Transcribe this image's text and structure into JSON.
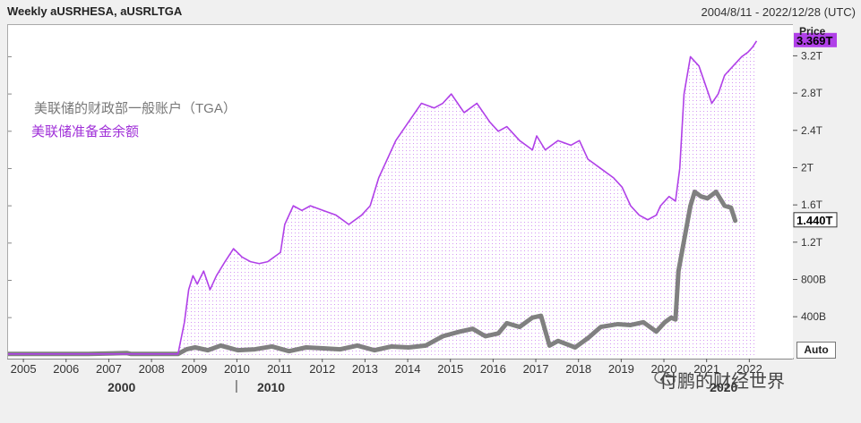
{
  "header": {
    "title": "Weekly aUSRHESA, aUSRLTGA",
    "date_range": "2004/8/11 - 2022/12/28 (UTC)"
  },
  "price_axis_label": "Price",
  "auto_button": "Auto",
  "watermark": "付鹏的财经世界",
  "colors": {
    "purple": "#b040e8",
    "gray": "#808080",
    "purple_badge": "#b040e8",
    "gray_badge": "#7a7a7a"
  },
  "chart_data": {
    "type": "line",
    "title": "",
    "legend": [
      {
        "label": "美联储的财政部一般账户（TGA）",
        "color": "#777777"
      },
      {
        "label": "美联储准备金余额",
        "color": "#a030d8"
      }
    ],
    "y_ticks": [
      "3.2T",
      "2.8T",
      "2.4T",
      "2T",
      "1.6T",
      "1.2T",
      "800B",
      "400B"
    ],
    "y_tick_values": [
      3200,
      2800,
      2400,
      2000,
      1600,
      1200,
      800,
      400
    ],
    "ylim": [
      -40,
      3540
    ],
    "xlim": [
      2004.62,
      2023.0
    ],
    "x_ticks": [
      "2005",
      "2006",
      "2007",
      "2008",
      "2009",
      "2010",
      "2011",
      "2012",
      "2013",
      "2014",
      "2015",
      "2016",
      "2017",
      "2018",
      "2019",
      "2020",
      "2021",
      "2022"
    ],
    "x_tick_values": [
      2005,
      2006,
      2007,
      2008,
      2009,
      2010,
      2011,
      2012,
      2013,
      2014,
      2015,
      2016,
      2017,
      2018,
      2019,
      2020,
      2021,
      2022
    ],
    "decade_labels": [
      {
        "label": "2000",
        "x": 2007.3
      },
      {
        "label": "2010",
        "x": 2010.8
      },
      {
        "label": "2020",
        "x": 2021.4
      }
    ],
    "badges": [
      {
        "label": "3.369T",
        "value": 3369,
        "series": "准备金"
      },
      {
        "label": "1.440T",
        "value": 1440,
        "series": "TGA"
      }
    ],
    "series": [
      {
        "name": "美联储准备金余额",
        "color": "#b040e8",
        "x": [
          2004.62,
          2005.5,
          2006.5,
          2007.5,
          2008.6,
          2008.75,
          2008.85,
          2008.95,
          2009.05,
          2009.2,
          2009.35,
          2009.5,
          2009.7,
          2009.9,
          2010.1,
          2010.3,
          2010.5,
          2010.7,
          2011.0,
          2011.1,
          2011.3,
          2011.5,
          2011.7,
          2012.0,
          2012.3,
          2012.6,
          2012.9,
          2013.1,
          2013.3,
          2013.5,
          2013.7,
          2014.0,
          2014.3,
          2014.6,
          2014.8,
          2015.0,
          2015.3,
          2015.6,
          2015.9,
          2016.1,
          2016.3,
          2016.6,
          2016.9,
          2017.0,
          2017.2,
          2017.5,
          2017.8,
          2018.0,
          2018.2,
          2018.5,
          2018.8,
          2019.0,
          2019.2,
          2019.4,
          2019.6,
          2019.8,
          2019.9,
          2020.1,
          2020.25,
          2020.35,
          2020.45,
          2020.6,
          2020.8,
          2020.95,
          2021.1,
          2021.25,
          2021.4,
          2021.6,
          2021.8,
          2021.95,
          2022.05,
          2022.15
        ],
        "values": [
          10,
          10,
          10,
          10,
          10,
          350,
          700,
          850,
          760,
          900,
          700,
          850,
          1000,
          1140,
          1050,
          1000,
          980,
          1000,
          1100,
          1400,
          1600,
          1550,
          1600,
          1550,
          1500,
          1400,
          1500,
          1600,
          1900,
          2100,
          2300,
          2500,
          2700,
          2650,
          2700,
          2800,
          2600,
          2700,
          2500,
          2400,
          2450,
          2300,
          2200,
          2350,
          2200,
          2300,
          2250,
          2300,
          2100,
          2000,
          1900,
          1800,
          1600,
          1500,
          1450,
          1500,
          1600,
          1700,
          1650,
          2000,
          2800,
          3200,
          3100,
          2900,
          2700,
          2800,
          3000,
          3100,
          3200,
          3250,
          3300,
          3369
        ]
      },
      {
        "name": "美联储的财政部一般账户（TGA）",
        "color": "#808080",
        "x": [
          2004.62,
          2005.5,
          2006.5,
          2007.4,
          2007.5,
          2008.6,
          2008.8,
          2009.0,
          2009.3,
          2009.6,
          2010.0,
          2010.4,
          2010.8,
          2011.2,
          2011.6,
          2012.0,
          2012.4,
          2012.8,
          2013.2,
          2013.6,
          2014.0,
          2014.4,
          2014.8,
          2015.2,
          2015.5,
          2015.8,
          2016.1,
          2016.3,
          2016.6,
          2016.9,
          2017.1,
          2017.3,
          2017.5,
          2017.9,
          2018.2,
          2018.5,
          2018.9,
          2019.2,
          2019.5,
          2019.8,
          2020.0,
          2020.15,
          2020.25,
          2020.32,
          2020.4,
          2020.5,
          2020.6,
          2020.7,
          2020.85,
          2021.0,
          2021.2,
          2021.4,
          2021.55,
          2021.65
        ],
        "values": [
          10,
          10,
          10,
          20,
          10,
          10,
          60,
          80,
          50,
          100,
          50,
          60,
          90,
          40,
          80,
          70,
          60,
          100,
          50,
          90,
          80,
          100,
          200,
          250,
          280,
          200,
          230,
          340,
          300,
          400,
          420,
          100,
          150,
          80,
          180,
          300,
          330,
          320,
          350,
          250,
          350,
          400,
          380,
          900,
          1100,
          1350,
          1600,
          1750,
          1700,
          1680,
          1750,
          1600,
          1580,
          1440
        ]
      }
    ]
  }
}
